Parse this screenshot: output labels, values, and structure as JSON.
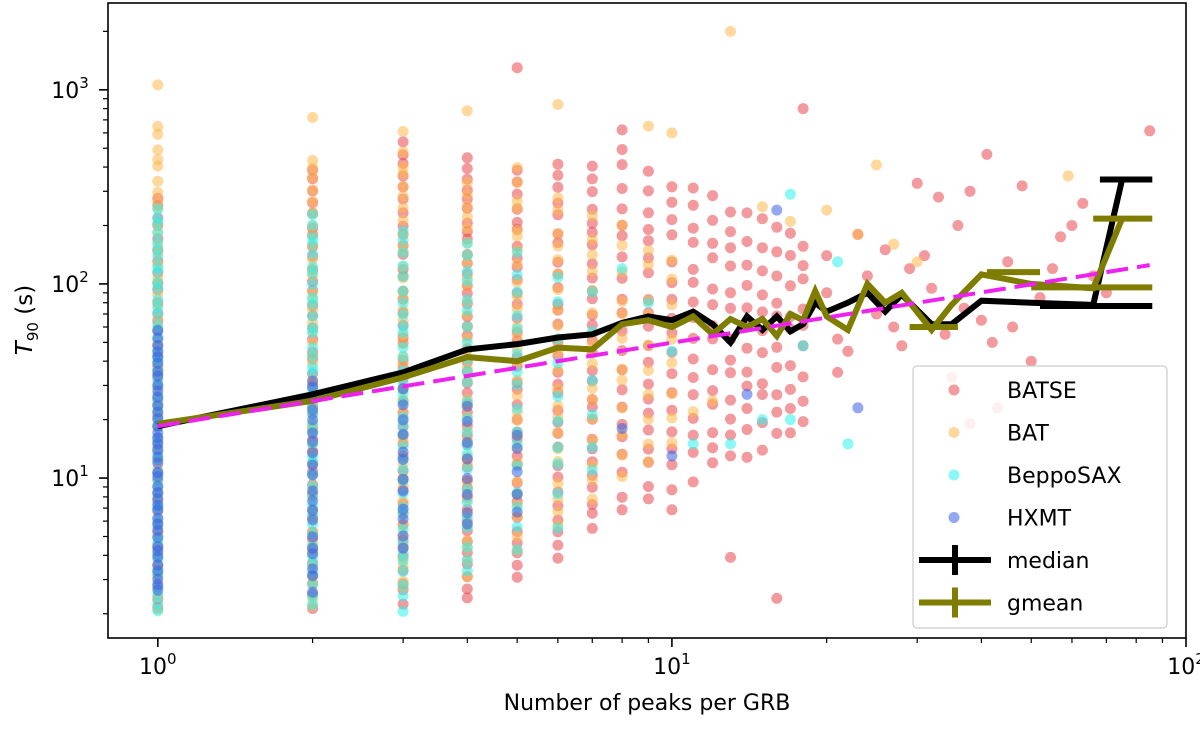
{
  "chart_data": {
    "type": "scatter",
    "title": "",
    "xlabel": "Number of peaks per GRB",
    "ylabel_main": "T",
    "ylabel_sub": "90",
    "ylabel_unit": " (s)",
    "xscale": "log",
    "yscale": "log",
    "xlim": [
      0.8,
      100
    ],
    "ylim": [
      1.5,
      2800
    ],
    "x_ticks": [
      {
        "value": 1,
        "base": "10",
        "exp": "0"
      },
      {
        "value": 10,
        "base": "10",
        "exp": "1"
      },
      {
        "value": 100,
        "base": "10",
        "exp": "2"
      }
    ],
    "y_ticks": [
      {
        "value": 10,
        "base": "10",
        "exp": "1"
      },
      {
        "value": 100,
        "base": "10",
        "exp": "2"
      },
      {
        "value": 1000,
        "base": "10",
        "exp": "3"
      }
    ],
    "grid": false,
    "legend_position": "lower right",
    "legend": [
      {
        "label": "BATSE",
        "kind": "marker",
        "color": "#e8474f"
      },
      {
        "label": "BAT",
        "kind": "marker",
        "color": "#fdb84d"
      },
      {
        "label": "BeppoSAX",
        "kind": "marker",
        "color": "#2ef2ee"
      },
      {
        "label": "HXMT",
        "kind": "marker",
        "color": "#3d5ee6"
      },
      {
        "label": "median",
        "kind": "errorline",
        "color": "#000000"
      },
      {
        "label": "gmean",
        "kind": "errorline",
        "color": "#7f7d00"
      }
    ],
    "scatter_series": [
      {
        "name": "BATSE",
        "color": "#e8474f",
        "alpha": 0.55,
        "columns": [
          {
            "x": 1,
            "y_range": [
              2,
              300
            ],
            "count": 40
          },
          {
            "x": 2,
            "y_range": [
              2,
              420
            ],
            "count": 40
          },
          {
            "x": 3,
            "y_range": [
              2.1,
              560
            ],
            "count": 42
          },
          {
            "x": 4,
            "y_range": [
              2.3,
              490
            ],
            "count": 42
          },
          {
            "x": 5,
            "y_range": [
              2.8,
              420
            ],
            "count": 34
          },
          {
            "x": 6,
            "y_range": [
              3.5,
              450
            ],
            "count": 30
          },
          {
            "x": 7,
            "y_range": [
              5,
              430
            ],
            "count": 28
          },
          {
            "x": 8,
            "y_range": [
              6,
              680
            ],
            "count": 22
          },
          {
            "x": 9,
            "y_range": [
              7,
              400
            ],
            "count": 20
          },
          {
            "x": 10,
            "y_range": [
              6.2,
              380
            ],
            "count": 18
          },
          {
            "x": 11,
            "y_range": [
              9,
              350
            ],
            "count": 16
          },
          {
            "x": 12,
            "y_range": [
              10,
              300
            ],
            "count": 14
          },
          {
            "x": 13,
            "y_range": [
              11,
              280
            ],
            "count": 13
          },
          {
            "x": 14,
            "y_range": [
              12,
              250
            ],
            "count": 12
          },
          {
            "x": 15,
            "y_range": [
              13,
              240
            ],
            "count": 11
          },
          {
            "x": 16,
            "y_range": [
              14,
              230
            ],
            "count": 10
          },
          {
            "x": 17,
            "y_range": [
              15,
              200
            ],
            "count": 9
          },
          {
            "x": 18,
            "y_range": [
              18,
              190
            ],
            "count": 9
          }
        ],
        "points": [
          {
            "x": 5,
            "y": 1300
          },
          {
            "x": 13,
            "y": 3.9
          },
          {
            "x": 16,
            "y": 2.4
          },
          {
            "x": 18,
            "y": 800
          },
          {
            "x": 20,
            "y": 140
          },
          {
            "x": 20,
            "y": 90
          },
          {
            "x": 21,
            "y": 52
          },
          {
            "x": 21,
            "y": 35
          },
          {
            "x": 22,
            "y": 45
          },
          {
            "x": 23,
            "y": 180
          },
          {
            "x": 24,
            "y": 110
          },
          {
            "x": 25,
            "y": 70
          },
          {
            "x": 26,
            "y": 150
          },
          {
            "x": 27,
            "y": 60
          },
          {
            "x": 28,
            "y": 48
          },
          {
            "x": 29,
            "y": 120
          },
          {
            "x": 30,
            "y": 330
          },
          {
            "x": 31,
            "y": 140
          },
          {
            "x": 32,
            "y": 95
          },
          {
            "x": 33,
            "y": 280
          },
          {
            "x": 34,
            "y": 55
          },
          {
            "x": 36,
            "y": 200
          },
          {
            "x": 37,
            "y": 75
          },
          {
            "x": 38,
            "y": 300
          },
          {
            "x": 40,
            "y": 65
          },
          {
            "x": 41,
            "y": 465
          },
          {
            "x": 42,
            "y": 50
          },
          {
            "x": 45,
            "y": 130
          },
          {
            "x": 46,
            "y": 60
          },
          {
            "x": 48,
            "y": 320
          },
          {
            "x": 50,
            "y": 40
          },
          {
            "x": 52,
            "y": 85
          },
          {
            "x": 55,
            "y": 120
          },
          {
            "x": 57,
            "y": 175
          },
          {
            "x": 60,
            "y": 200
          },
          {
            "x": 63,
            "y": 260
          },
          {
            "x": 66,
            "y": 110
          },
          {
            "x": 70,
            "y": 90
          },
          {
            "x": 85,
            "y": 615
          },
          {
            "x": 35,
            "y": 33
          },
          {
            "x": 43,
            "y": 23
          },
          {
            "x": 38,
            "y": 19
          }
        ]
      },
      {
        "name": "BAT",
        "color": "#fdb84d",
        "alpha": 0.55,
        "columns": [
          {
            "x": 1,
            "y_range": [
              2,
              700
            ],
            "count": 46
          },
          {
            "x": 2,
            "y_range": [
              2,
              480
            ],
            "count": 42
          },
          {
            "x": 3,
            "y_range": [
              2.5,
              500
            ],
            "count": 40
          },
          {
            "x": 4,
            "y_range": [
              3,
              360
            ],
            "count": 34
          },
          {
            "x": 5,
            "y_range": [
              4,
              420
            ],
            "count": 28
          },
          {
            "x": 6,
            "y_range": [
              5,
              300
            ],
            "count": 22
          },
          {
            "x": 7,
            "y_range": [
              7,
              250
            ],
            "count": 16
          },
          {
            "x": 8,
            "y_range": [
              9,
              220
            ],
            "count": 12
          },
          {
            "x": 9,
            "y_range": [
              10,
              180
            ],
            "count": 10
          },
          {
            "x": 10,
            "y_range": [
              12,
              160
            ],
            "count": 8
          }
        ],
        "points": [
          {
            "x": 1,
            "y": 1060
          },
          {
            "x": 2,
            "y": 720
          },
          {
            "x": 3,
            "y": 610
          },
          {
            "x": 4,
            "y": 780
          },
          {
            "x": 6,
            "y": 840
          },
          {
            "x": 9,
            "y": 650
          },
          {
            "x": 10,
            "y": 600
          },
          {
            "x": 13,
            "y": 2000
          },
          {
            "x": 15,
            "y": 250
          },
          {
            "x": 17,
            "y": 210
          },
          {
            "x": 20,
            "y": 240
          },
          {
            "x": 23,
            "y": 180
          },
          {
            "x": 25,
            "y": 410
          },
          {
            "x": 27,
            "y": 160
          },
          {
            "x": 30,
            "y": 130
          },
          {
            "x": 59,
            "y": 360
          },
          {
            "x": 12,
            "y": 25
          },
          {
            "x": 11,
            "y": 22
          }
        ]
      },
      {
        "name": "BeppoSAX",
        "color": "#2ef2ee",
        "alpha": 0.55,
        "columns": [
          {
            "x": 1,
            "y_range": [
              2,
              260
            ],
            "count": 50
          },
          {
            "x": 2,
            "y_range": [
              2.1,
              240
            ],
            "count": 40
          },
          {
            "x": 3,
            "y_range": [
              2,
              200
            ],
            "count": 34
          },
          {
            "x": 4,
            "y_range": [
              3,
              180
            ],
            "count": 24
          },
          {
            "x": 5,
            "y_range": [
              4,
              160
            ],
            "count": 16
          },
          {
            "x": 6,
            "y_range": [
              5,
              120
            ],
            "count": 10
          },
          {
            "x": 7,
            "y_range": [
              8,
              100
            ],
            "count": 6
          }
        ],
        "points": [
          {
            "x": 8,
            "y": 120
          },
          {
            "x": 9,
            "y": 80
          },
          {
            "x": 10,
            "y": 45
          },
          {
            "x": 11,
            "y": 15
          },
          {
            "x": 13,
            "y": 15
          },
          {
            "x": 15,
            "y": 20
          },
          {
            "x": 17,
            "y": 20
          },
          {
            "x": 18,
            "y": 48
          },
          {
            "x": 21,
            "y": 130
          },
          {
            "x": 22,
            "y": 15
          },
          {
            "x": 17,
            "y": 290
          }
        ]
      },
      {
        "name": "HXMT",
        "color": "#3d5ee6",
        "alpha": 0.55,
        "columns": [
          {
            "x": 1,
            "y_range": [
              2.5,
              60
            ],
            "count": 40
          },
          {
            "x": 2,
            "y_range": [
              2.5,
              35
            ],
            "count": 20
          },
          {
            "x": 3,
            "y_range": [
              4,
              30
            ],
            "count": 12
          },
          {
            "x": 4,
            "y_range": [
              5,
              25
            ],
            "count": 8
          },
          {
            "x": 5,
            "y_range": [
              6,
              20
            ],
            "count": 5
          }
        ],
        "points": [
          {
            "x": 8,
            "y": 18
          },
          {
            "x": 10,
            "y": 13
          },
          {
            "x": 14,
            "y": 27
          },
          {
            "x": 23,
            "y": 23
          },
          {
            "x": 16,
            "y": 240
          }
        ]
      }
    ],
    "line_series": [
      {
        "name": "median",
        "color": "#000000",
        "x": [
          1,
          2,
          3,
          4,
          5,
          6,
          7,
          8,
          9,
          10,
          11,
          12,
          13,
          14,
          15,
          16,
          17,
          18,
          19,
          20,
          22,
          24,
          26,
          28,
          32,
          35,
          40,
          50,
          66,
          75
        ],
        "y": [
          18.5,
          27,
          35,
          46,
          49,
          53,
          55,
          63,
          68,
          65,
          72,
          62,
          50,
          68,
          58,
          68,
          57,
          62,
          80,
          72,
          80,
          90,
          72,
          88,
          62,
          62,
          82,
          80,
          78,
          340
        ],
        "errbar_segments": [
          {
            "x": [
              52,
              86
            ],
            "y": 77
          },
          {
            "x": [
              68,
              86
            ],
            "y": 345
          }
        ]
      },
      {
        "name": "gmean",
        "color": "#7f7d00",
        "x": [
          1,
          2,
          3,
          4,
          5,
          6,
          7,
          8,
          9,
          10,
          11,
          12,
          13,
          14,
          15,
          16,
          17,
          18,
          19,
          20,
          22,
          24,
          26,
          28,
          32,
          35,
          40,
          50,
          66,
          75
        ],
        "y": [
          19,
          25,
          33,
          42,
          40,
          47,
          46,
          62,
          65,
          60,
          68,
          55,
          66,
          60,
          66,
          54,
          70,
          65,
          92,
          68,
          58,
          100,
          80,
          90,
          58,
          78,
          112,
          100,
          95,
          215
        ],
        "errbar_segments": [
          {
            "x": [
              29,
              36
            ],
            "y": 60
          },
          {
            "x": [
              41,
              52
            ],
            "y": 115
          },
          {
            "x": [
              50,
              86
            ],
            "y": 96
          },
          {
            "x": [
              66,
              86
            ],
            "y": 217
          }
        ]
      },
      {
        "name": "",
        "color": "#ee22ee",
        "dashed": true,
        "x": [
          1,
          85
        ],
        "y": [
          18.5,
          125
        ]
      }
    ]
  }
}
